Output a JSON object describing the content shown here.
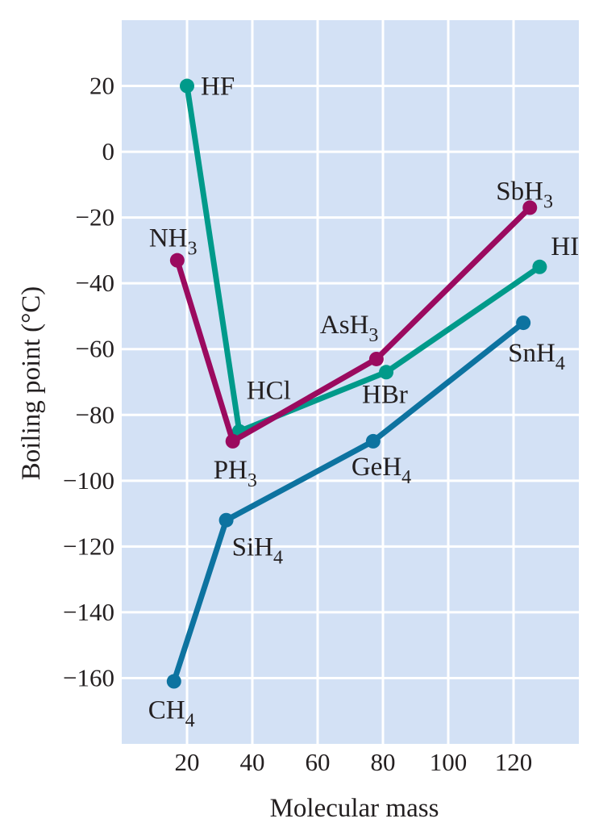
{
  "chart_data": {
    "type": "line",
    "title": "",
    "xlabel": "Molecular mass",
    "ylabel": "Boiling point (°C)",
    "xlim": [
      0,
      140
    ],
    "ylim": [
      -180,
      40
    ],
    "x_ticks": [
      20,
      40,
      60,
      80,
      100,
      120
    ],
    "y_ticks": [
      20,
      0,
      -20,
      -40,
      -60,
      -80,
      -100,
      -120,
      -140,
      -160
    ],
    "grid": true,
    "series": [
      {
        "color": "#009a8a",
        "points": [
          {
            "label": "HF",
            "x": 20,
            "y": 20
          },
          {
            "label": "HCl",
            "x": 36,
            "y": -85
          },
          {
            "label": "HBr",
            "x": 81,
            "y": -67
          },
          {
            "label": "HI",
            "x": 128,
            "y": -35
          }
        ]
      },
      {
        "color": "#9b0a5f",
        "points": [
          {
            "label": "NH₃",
            "x": 17,
            "y": -33
          },
          {
            "label": "PH₃",
            "x": 34,
            "y": -88
          },
          {
            "label": "AsH₃",
            "x": 78,
            "y": -63
          },
          {
            "label": "SbH₃",
            "x": 125,
            "y": -17
          }
        ]
      },
      {
        "color": "#0d73a0",
        "points": [
          {
            "label": "CH₄",
            "x": 16,
            "y": -161
          },
          {
            "label": "SiH₄",
            "x": 32,
            "y": -112
          },
          {
            "label": "GeH₄",
            "x": 77,
            "y": -88
          },
          {
            "label": "SnH₄",
            "x": 123,
            "y": -52
          }
        ]
      }
    ]
  },
  "colors": {
    "plot_background": "#d3e1f5",
    "gridline": "#ffffff",
    "text": "#231f20"
  }
}
